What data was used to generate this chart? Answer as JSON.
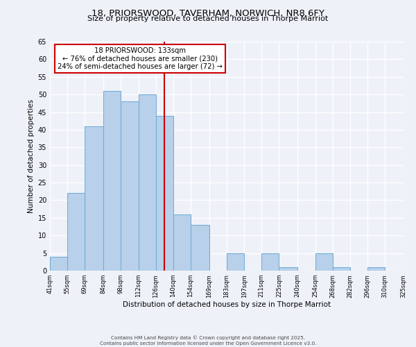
{
  "title": "18, PRIORSWOOD, TAVERHAM, NORWICH, NR8 6FY",
  "subtitle": "Size of property relative to detached houses in Thorpe Marriot",
  "xlabel": "Distribution of detached houses by size in Thorpe Marriot",
  "ylabel": "Number of detached properties",
  "bin_edges": [
    41,
    55,
    69,
    84,
    98,
    112,
    126,
    140,
    154,
    169,
    183,
    197,
    211,
    225,
    240,
    254,
    268,
    282,
    296,
    310,
    325
  ],
  "bin_labels": [
    "41sqm",
    "55sqm",
    "69sqm",
    "84sqm",
    "98sqm",
    "112sqm",
    "126sqm",
    "140sqm",
    "154sqm",
    "169sqm",
    "183sqm",
    "197sqm",
    "211sqm",
    "225sqm",
    "240sqm",
    "254sqm",
    "268sqm",
    "282sqm",
    "296sqm",
    "310sqm",
    "325sqm"
  ],
  "bar_heights": [
    4,
    22,
    41,
    51,
    48,
    50,
    44,
    16,
    13,
    0,
    5,
    0,
    5,
    1,
    0,
    5,
    1,
    0,
    1,
    0,
    0
  ],
  "bar_color": "#b8d0ea",
  "bar_edge_color": "#6aaad4",
  "vline_x": 133,
  "vline_color": "#cc0000",
  "ylim": [
    0,
    65
  ],
  "yticks": [
    0,
    5,
    10,
    15,
    20,
    25,
    30,
    35,
    40,
    45,
    50,
    55,
    60,
    65
  ],
  "annotation_title": "18 PRIORSWOOD: 133sqm",
  "annotation_line1": "← 76% of detached houses are smaller (230)",
  "annotation_line2": "24% of semi-detached houses are larger (72) →",
  "annotation_box_color": "#cc0000",
  "footer_line1": "Contains HM Land Registry data © Crown copyright and database right 2025.",
  "footer_line2": "Contains public sector information licensed under the Open Government Licence v3.0.",
  "bg_color": "#eef2f8"
}
